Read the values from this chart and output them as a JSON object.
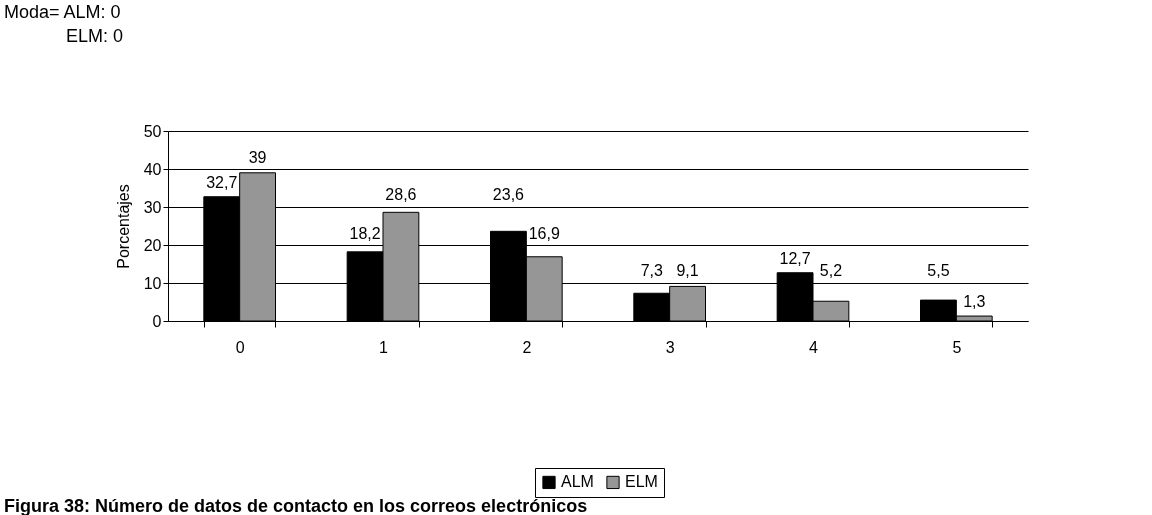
{
  "chart_data": {
    "type": "bar",
    "title": "Figura 38: Número de datos de contacto en los correos electrónicos",
    "annotations": [
      "Moda= ALM: 0",
      "ELM: 0"
    ],
    "ylabel": "Porcentajes",
    "categories": [
      "0",
      "1",
      "2",
      "3",
      "4",
      "5"
    ],
    "series": [
      {
        "name": "ALM",
        "color": "#000000",
        "values": [
          32.7,
          18.2,
          23.6,
          7.3,
          12.7,
          5.5
        ],
        "value_labels": [
          "32,7",
          "18,2",
          "23,6",
          "7,3",
          "12,7",
          "5,5"
        ]
      },
      {
        "name": "ELM",
        "color": "#969696",
        "values": [
          39,
          28.6,
          16.9,
          9.1,
          5.2,
          1.3
        ],
        "value_labels": [
          "39",
          "28,6",
          "16,9",
          "9,1",
          "5,2",
          "1,3"
        ]
      }
    ],
    "ylim": [
      0,
      50
    ],
    "yticks": [
      0,
      10,
      20,
      30,
      40,
      50
    ],
    "grid": "y",
    "legend": "bottom"
  }
}
